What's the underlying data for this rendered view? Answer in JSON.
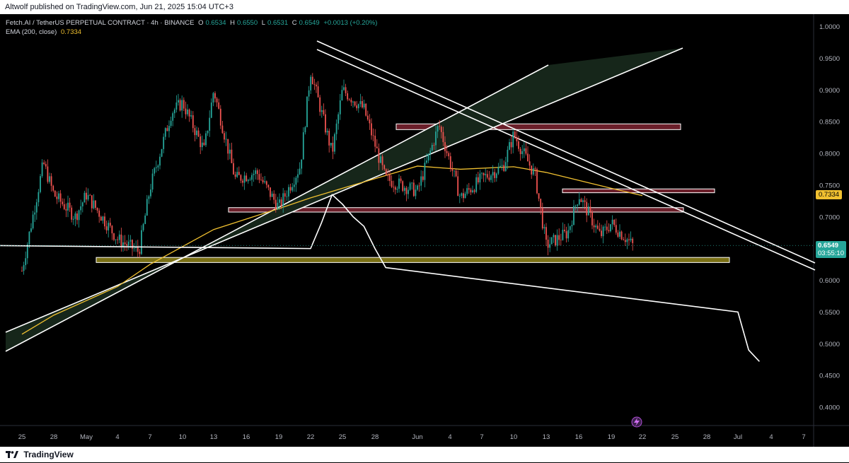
{
  "header": {
    "published_text": "Altwolf published on TradingView.com, Jun 21, 2025 15:04 UTC+3"
  },
  "legend": {
    "symbol": "Fetch.AI / TetherUS PERPETUAL CONTRACT · 4h · BINANCE",
    "o_label": "O",
    "o_value": "0.6534",
    "h_label": "H",
    "h_value": "0.6550",
    "l_label": "L",
    "l_value": "0.6531",
    "c_label": "C",
    "c_value": "0.6549",
    "change": "+0.0013 (+0.20%)",
    "ema_label": "EMA (200, close)",
    "ema_value": "0.7334"
  },
  "price_tags": {
    "ema": "0.7334",
    "last": "0.6549",
    "countdown": "03:55:10"
  },
  "footer": {
    "brand": "TradingView"
  },
  "colors": {
    "background": "#000000",
    "up": "#26a69a",
    "down": "#ef5350",
    "ema": "#f0c030",
    "resistance_zone": "#6b1f2a",
    "support_zone": "#7a7015",
    "channel_fill": "#16261a"
  },
  "chart_data": {
    "type": "candlestick",
    "interval": "4h",
    "ylim": [
      0.37,
      1.0
    ],
    "y_ticks": [
      "1.0000",
      "0.9500",
      "0.9000",
      "0.8500",
      "0.8000",
      "0.7500",
      "0.7000",
      "0.6500",
      "0.6000",
      "0.5500",
      "0.5000",
      "0.4500",
      "0.4000"
    ],
    "x_ticks": [
      "25",
      "28",
      "May",
      "4",
      "7",
      "10",
      "13",
      "16",
      "19",
      "22",
      "25",
      "28",
      "Jun",
      "4",
      "7",
      "10",
      "13",
      "16",
      "19",
      "22",
      "25",
      "28",
      "Jul",
      "4",
      "7"
    ],
    "price_path": [
      [
        "25",
        0.615
      ],
      [
        "27",
        0.785
      ],
      [
        "28",
        0.735
      ],
      [
        "30",
        0.7
      ],
      [
        "May",
        0.735
      ],
      [
        "4",
        0.665
      ],
      [
        "6",
        0.645
      ],
      [
        "7",
        0.745
      ],
      [
        "9",
        0.865
      ],
      [
        "10",
        0.88
      ],
      [
        "12",
        0.805
      ],
      [
        "13",
        0.9
      ],
      [
        "15",
        0.76
      ],
      [
        "17",
        0.77
      ],
      [
        "19",
        0.715
      ],
      [
        "21",
        0.78
      ],
      [
        "22",
        0.93
      ],
      [
        "24",
        0.8
      ],
      [
        "25",
        0.9
      ],
      [
        "27",
        0.87
      ],
      [
        "29",
        0.76
      ],
      [
        "Jun",
        0.74
      ],
      [
        "3",
        0.845
      ],
      [
        "5",
        0.73
      ],
      [
        "7",
        0.76
      ],
      [
        "9",
        0.78
      ],
      [
        "10",
        0.83
      ],
      [
        "12",
        0.765
      ],
      [
        "13",
        0.655
      ],
      [
        "15",
        0.675
      ],
      [
        "16",
        0.735
      ],
      [
        "18",
        0.67
      ],
      [
        "19",
        0.69
      ],
      [
        "21",
        0.655
      ]
    ],
    "ema_200": [
      [
        "25",
        0.515
      ],
      [
        "28",
        0.545
      ],
      [
        "4",
        0.59
      ],
      [
        "7",
        0.625
      ],
      [
        "13",
        0.68
      ],
      [
        "19",
        0.713
      ],
      [
        "22",
        0.73
      ],
      [
        "25",
        0.745
      ],
      [
        "29",
        0.765
      ],
      [
        "Jun",
        0.78
      ],
      [
        "5",
        0.775
      ],
      [
        "10",
        0.779
      ],
      [
        "13",
        0.77
      ],
      [
        "19",
        0.745
      ],
      [
        "22",
        0.7334
      ]
    ],
    "zones": [
      {
        "type": "resistance",
        "low": 0.8375,
        "high": 0.8465
      },
      {
        "type": "resistance",
        "low": 0.738,
        "high": 0.744
      },
      {
        "type": "resistance",
        "low": 0.7075,
        "high": 0.7145
      },
      {
        "type": "support",
        "low": 0.628,
        "high": 0.636
      }
    ],
    "projection_path": [
      [
        "21",
        0.655
      ],
      [
        "22",
        0.65
      ],
      [
        "23",
        0.69
      ],
      [
        "24",
        0.735
      ],
      [
        "25",
        0.72
      ],
      [
        "26",
        0.7
      ],
      [
        "27",
        0.685
      ],
      [
        "28",
        0.65
      ],
      [
        "29",
        0.62
      ],
      [
        "Jul",
        0.55
      ],
      [
        "2",
        0.49
      ],
      [
        "3",
        0.472
      ]
    ],
    "last_price": 0.6549,
    "ema_last": 0.7334
  }
}
